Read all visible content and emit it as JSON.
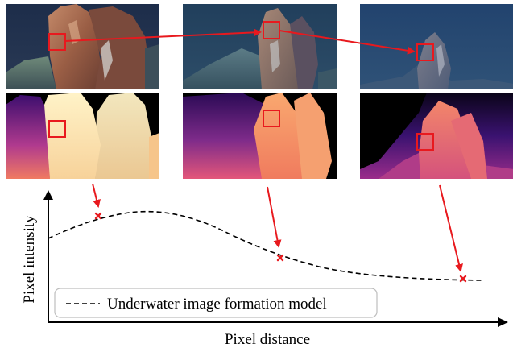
{
  "figure": {
    "legend_label": "Underwater image formation model",
    "xlabel": "Pixel distance",
    "ylabel": "Pixel intensity"
  },
  "colors": {
    "highlight": "#e8191e",
    "curve": "#000000",
    "background": "#ffffff"
  },
  "panels": {
    "rgb": [
      "close-view-vent-photo",
      "mid-view-vent-photo",
      "far-view-vent-photo"
    ],
    "depth": [
      "close-view-depth-map",
      "mid-view-depth-map",
      "far-view-depth-map"
    ]
  }
}
